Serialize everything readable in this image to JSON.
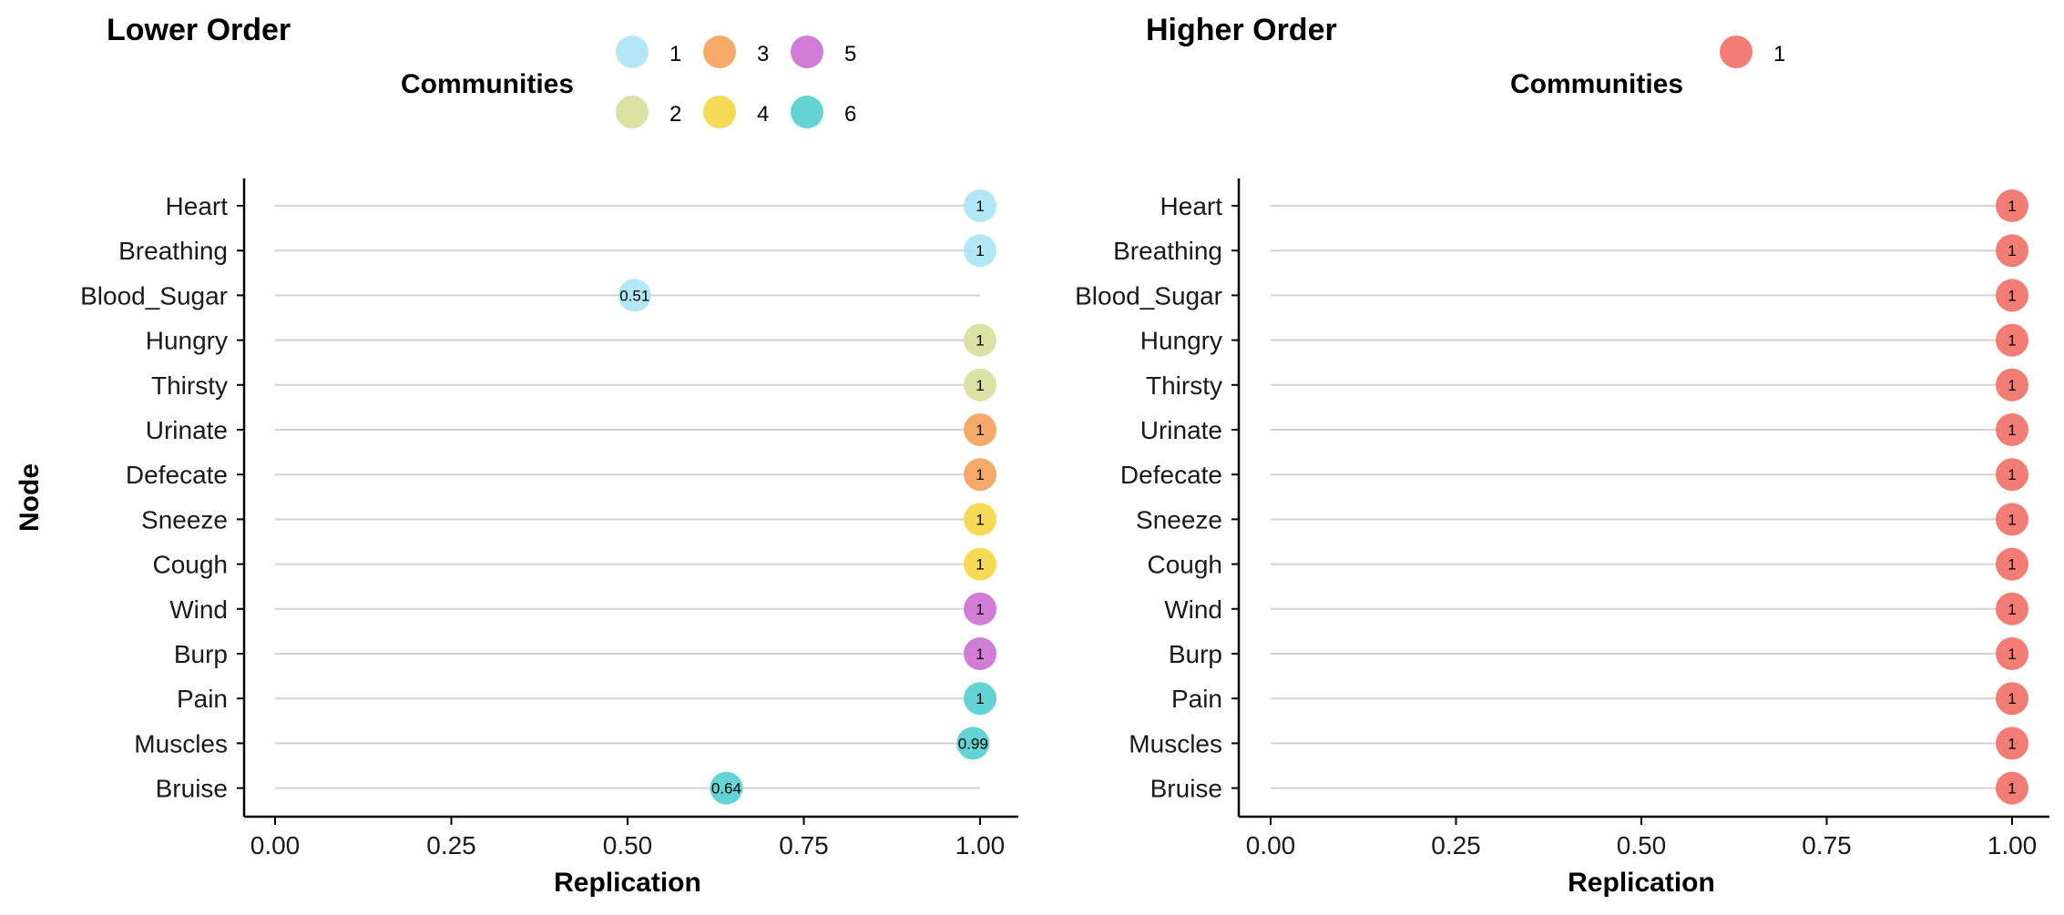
{
  "chart_data": [
    {
      "type": "scatter",
      "title": "Lower Order",
      "xlabel": "Replication",
      "ylabel": "Node",
      "xlim": [
        0,
        1.05
      ],
      "xticks": [
        "0.00",
        "0.25",
        "0.50",
        "0.75",
        "1.00"
      ],
      "xtick_values": [
        0,
        0.25,
        0.5,
        0.75,
        1.0
      ],
      "grid": "horizontal lines per node",
      "legend": {
        "title": "Communities",
        "placement": "top",
        "entries": [
          {
            "label": "1",
            "color": "#AEE6F5"
          },
          {
            "label": "2",
            "color": "#D8E29E"
          },
          {
            "label": "3",
            "color": "#F4A562"
          },
          {
            "label": "4",
            "color": "#F6D84C"
          },
          {
            "label": "5",
            "color": "#CF76D4"
          },
          {
            "label": "6",
            "color": "#5CD1D1"
          }
        ]
      },
      "nodes": [
        "Heart",
        "Breathing",
        "Blood_Sugar",
        "Hungry",
        "Thirsty",
        "Urinate",
        "Defecate",
        "Sneeze",
        "Cough",
        "Wind",
        "Burp",
        "Pain",
        "Muscles",
        "Bruise"
      ],
      "values": [
        1,
        1,
        0.51,
        1,
        1,
        1,
        1,
        1,
        1,
        1,
        1,
        1,
        0.99,
        0.64
      ],
      "labels": [
        "1",
        "1",
        "0.51",
        "1",
        "1",
        "1",
        "1",
        "1",
        "1",
        "1",
        "1",
        "1",
        "0.99",
        "0.64"
      ],
      "community": [
        "1",
        "1",
        "1",
        "2",
        "2",
        "3",
        "3",
        "4",
        "4",
        "5",
        "5",
        "6",
        "6",
        "6"
      ]
    },
    {
      "type": "scatter",
      "title": "Higher Order",
      "xlabel": "Replication",
      "ylabel": "",
      "xlim": [
        0,
        1.05
      ],
      "xticks": [
        "0.00",
        "0.25",
        "0.50",
        "0.75",
        "1.00"
      ],
      "xtick_values": [
        0,
        0.25,
        0.5,
        0.75,
        1.0
      ],
      "grid": "horizontal lines per node",
      "legend": {
        "title": "Communities",
        "placement": "top",
        "entries": [
          {
            "label": "1",
            "color": "#F0766E"
          }
        ]
      },
      "nodes": [
        "Heart",
        "Breathing",
        "Blood_Sugar",
        "Hungry",
        "Thirsty",
        "Urinate",
        "Defecate",
        "Sneeze",
        "Cough",
        "Wind",
        "Burp",
        "Pain",
        "Muscles",
        "Bruise"
      ],
      "values": [
        1,
        1,
        1,
        1,
        1,
        1,
        1,
        1,
        1,
        1,
        1,
        1,
        1,
        1
      ],
      "labels": [
        "1",
        "1",
        "1",
        "1",
        "1",
        "1",
        "1",
        "1",
        "1",
        "1",
        "1",
        "1",
        "1",
        "1"
      ],
      "community": [
        "1",
        "1",
        "1",
        "1",
        "1",
        "1",
        "1",
        "1",
        "1",
        "1",
        "1",
        "1",
        "1",
        "1"
      ]
    }
  ]
}
